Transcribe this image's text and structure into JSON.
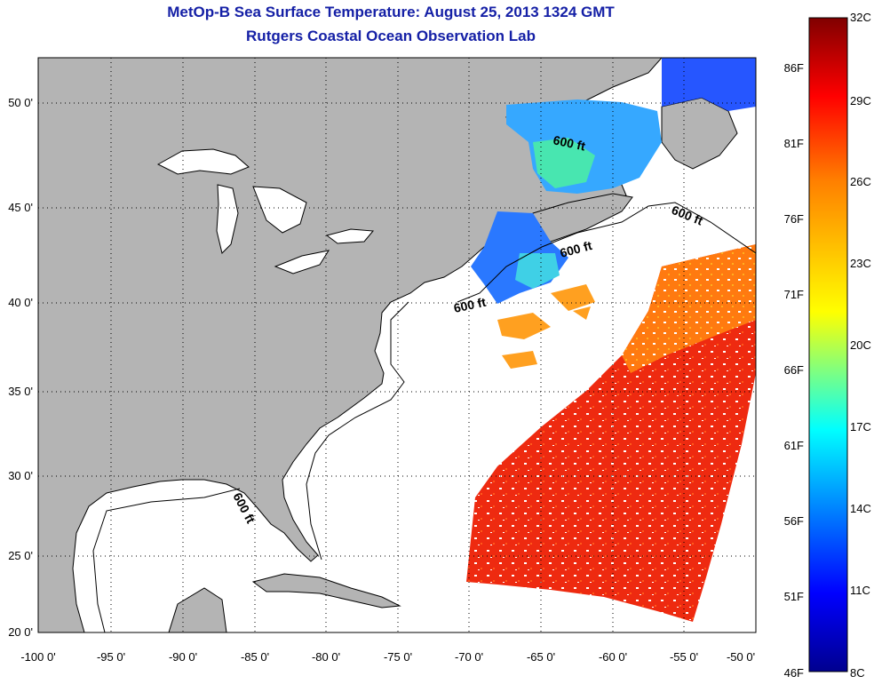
{
  "header": {
    "title": "MetOp-B Sea Surface Temperature:  August 25, 2013 1324 GMT",
    "subtitle": "Rutgers Coastal Ocean Observation Lab"
  },
  "map": {
    "lon_ticks": [
      "-100 0'",
      "-95 0'",
      "-90 0'",
      "-85 0'",
      "-80 0'",
      "-75 0'",
      "-70 0'",
      "-65 0'",
      "-60 0'",
      "-55 0'",
      "-50 0'"
    ],
    "lat_ticks": [
      "50 0'",
      "45 0'",
      "40 0'",
      "35 0'",
      "30 0'",
      "25 0'",
      "20 0'"
    ],
    "contour_labels": [
      "600 ft",
      "600 ft",
      "600 ft",
      "600 ft",
      "600 ft"
    ],
    "colors": {
      "land": "#b4b4b4",
      "ocean": "#ffffff",
      "coast": "#000000"
    }
  },
  "colorbar": {
    "celsius_labels": [
      "32C",
      "29C",
      "26C",
      "23C",
      "20C",
      "17C",
      "14C",
      "11C",
      "8C"
    ],
    "fahrenheit_labels": [
      "86F",
      "81F",
      "76F",
      "71F",
      "66F",
      "61F",
      "56F",
      "51F",
      "46F"
    ],
    "min_c": 8,
    "max_c": 32,
    "colormap": [
      "#00008f",
      "#0000ff",
      "#0080ff",
      "#00ffff",
      "#80ff80",
      "#ffff00",
      "#ff8000",
      "#ff0000",
      "#800000"
    ]
  }
}
